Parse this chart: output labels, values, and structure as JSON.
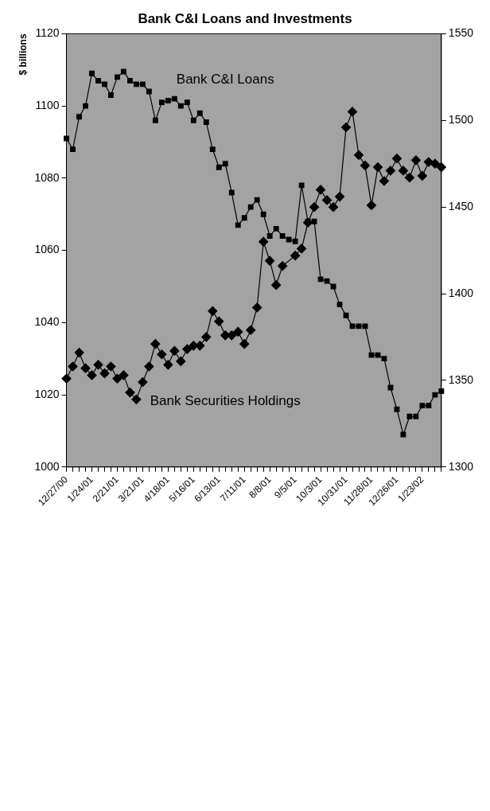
{
  "chart_data": {
    "type": "line",
    "title": "Bank C&I Loans and Investments",
    "ylabel": "$ billions",
    "categories": [
      "12/27/00",
      null,
      null,
      null,
      "1/24/01",
      null,
      null,
      null,
      "2/21/01",
      null,
      null,
      null,
      "3/21/01",
      null,
      null,
      null,
      "4/18/01",
      null,
      null,
      null,
      "5/16/01",
      null,
      null,
      null,
      "6/13/01",
      null,
      null,
      null,
      "7/11/01",
      null,
      null,
      null,
      "8/8/01",
      null,
      null,
      null,
      "9/5/01",
      null,
      null,
      null,
      "10/3/01",
      null,
      null,
      null,
      "10/31/01",
      null,
      null,
      null,
      "11/28/01",
      null,
      null,
      null,
      "12/26/01",
      null,
      null,
      null,
      "1/23/02",
      null,
      null,
      null
    ],
    "series": [
      {
        "name": "Bank C&I Loans",
        "color": "#000000",
        "marker": "square",
        "values": [
          1091,
          1088,
          1097,
          1100,
          1109,
          1107,
          1106,
          1103,
          1108,
          1109.5,
          1107,
          1106,
          1106,
          1104,
          1096,
          1101,
          1101.5,
          1102,
          1100,
          1101,
          1096,
          1098,
          1095.5,
          1088,
          1083,
          1084,
          1076,
          1067,
          1069,
          1072,
          1074,
          1070,
          1064,
          1066,
          1064,
          1063,
          1062.5,
          1078,
          1068,
          1068,
          1052,
          1051.5,
          1050,
          1045,
          1042,
          1039,
          1039,
          1039,
          1031,
          1031,
          1030,
          1022,
          1016,
          1009,
          1014,
          1014,
          1017,
          1017,
          1020,
          1021
        ]
      },
      {
        "name": "Bank Securities Holdings",
        "color": "#000000",
        "marker": "diamond",
        "axis": "y2",
        "values": [
          1351,
          1358,
          1366,
          1357,
          1353,
          1359,
          1354,
          1358,
          1351,
          1353,
          1343,
          1339,
          1349,
          1358,
          1371,
          1365,
          1359,
          1367,
          1361,
          1368,
          1370,
          1370,
          1375,
          1390,
          1384,
          1376,
          1376,
          1378,
          1371,
          1379,
          1392,
          1430,
          1419,
          1405,
          1416,
          null,
          1422,
          1426,
          1441,
          1450,
          1460,
          1454,
          1450,
          1456,
          1496,
          1505,
          1480,
          1474,
          1451,
          1473,
          1465,
          1471,
          1478,
          1471,
          1467,
          1477,
          1468,
          1476,
          1475,
          1473
        ]
      }
    ],
    "ylim": [
      1000,
      1120
    ],
    "yticks": [
      1000,
      1020,
      1040,
      1060,
      1080,
      1100,
      1120
    ],
    "y2lim": [
      1300,
      1550
    ],
    "y2ticks": [
      1300,
      1350,
      1400,
      1450,
      1500,
      1550
    ],
    "grid": false,
    "legend": false,
    "line_style": "solid"
  }
}
